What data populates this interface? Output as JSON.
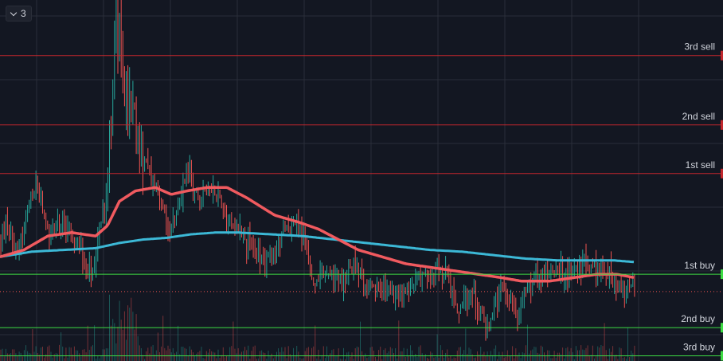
{
  "toolbar": {
    "collapse_count": "3",
    "collapse_icon": "chevron-down-icon"
  },
  "colors": {
    "background": "#131722",
    "grid": "#2a2e39",
    "candle_up": "#26a69a",
    "candle_down": "#ef5350",
    "ma_fast": "#f05a5f",
    "ma_slow": "#3cb8d6",
    "sell_line": "#c2272d",
    "buy_line": "#3ddc43",
    "label_text": "#d1d4dc"
  },
  "chart_data": {
    "type": "candlestick",
    "y_range_visible": [
      0.22,
      1.26
    ],
    "levels": [
      {
        "label": "3rd sell",
        "kind": "sell",
        "value": 1.1
      },
      {
        "label": "2nd sell",
        "kind": "sell",
        "value": 0.9
      },
      {
        "label": "1st sell",
        "kind": "sell",
        "value": 0.76
      },
      {
        "label": "1st buy",
        "kind": "buy",
        "value": 0.47
      },
      {
        "label": "2nd buy",
        "kind": "buy",
        "value": 0.316
      },
      {
        "label": "3rd buy",
        "kind": "buy",
        "value": 0.235
      }
    ],
    "last_price": 0.42,
    "price_anchors": [
      [
        0,
        0.56
      ],
      [
        8,
        0.62
      ],
      [
        22,
        0.54
      ],
      [
        45,
        0.74
      ],
      [
        60,
        0.58
      ],
      [
        75,
        0.62
      ],
      [
        95,
        0.57
      ],
      [
        115,
        0.46
      ],
      [
        135,
        0.75
      ],
      [
        145,
        1.2
      ],
      [
        155,
        1.02
      ],
      [
        165,
        0.93
      ],
      [
        180,
        0.8
      ],
      [
        200,
        0.7
      ],
      [
        215,
        0.58
      ],
      [
        235,
        0.78
      ],
      [
        250,
        0.69
      ],
      [
        270,
        0.72
      ],
      [
        285,
        0.64
      ],
      [
        300,
        0.6
      ],
      [
        320,
        0.54
      ],
      [
        340,
        0.5
      ],
      [
        355,
        0.58
      ],
      [
        370,
        0.62
      ],
      [
        385,
        0.56
      ],
      [
        392,
        0.44
      ],
      [
        410,
        0.47
      ],
      [
        430,
        0.45
      ],
      [
        445,
        0.51
      ],
      [
        460,
        0.42
      ],
      [
        480,
        0.43
      ],
      [
        500,
        0.4
      ],
      [
        520,
        0.45
      ],
      [
        540,
        0.47
      ],
      [
        560,
        0.46
      ],
      [
        575,
        0.37
      ],
      [
        595,
        0.42
      ],
      [
        610,
        0.31
      ],
      [
        630,
        0.42
      ],
      [
        650,
        0.36
      ],
      [
        665,
        0.46
      ],
      [
        690,
        0.48
      ],
      [
        710,
        0.47
      ],
      [
        735,
        0.5
      ],
      [
        760,
        0.48
      ],
      [
        775,
        0.44
      ],
      [
        795,
        0.42
      ]
    ],
    "ma_fast": [
      [
        0,
        0.52
      ],
      [
        30,
        0.54
      ],
      [
        60,
        0.58
      ],
      [
        90,
        0.59
      ],
      [
        120,
        0.58
      ],
      [
        135,
        0.61
      ],
      [
        150,
        0.68
      ],
      [
        170,
        0.71
      ],
      [
        195,
        0.72
      ],
      [
        215,
        0.7
      ],
      [
        235,
        0.71
      ],
      [
        260,
        0.72
      ],
      [
        285,
        0.72
      ],
      [
        310,
        0.69
      ],
      [
        345,
        0.64
      ],
      [
        375,
        0.62
      ],
      [
        400,
        0.6
      ],
      [
        425,
        0.57
      ],
      [
        450,
        0.54
      ],
      [
        480,
        0.52
      ],
      [
        510,
        0.5
      ],
      [
        540,
        0.49
      ],
      [
        570,
        0.48
      ],
      [
        600,
        0.47
      ],
      [
        630,
        0.46
      ],
      [
        655,
        0.45
      ],
      [
        690,
        0.45
      ],
      [
        720,
        0.46
      ],
      [
        750,
        0.47
      ],
      [
        775,
        0.47
      ],
      [
        797,
        0.46
      ]
    ],
    "ma_slow": [
      [
        0,
        0.52
      ],
      [
        40,
        0.535
      ],
      [
        80,
        0.54
      ],
      [
        120,
        0.545
      ],
      [
        150,
        0.56
      ],
      [
        180,
        0.57
      ],
      [
        210,
        0.575
      ],
      [
        240,
        0.585
      ],
      [
        270,
        0.59
      ],
      [
        300,
        0.59
      ],
      [
        340,
        0.585
      ],
      [
        380,
        0.58
      ],
      [
        420,
        0.57
      ],
      [
        460,
        0.56
      ],
      [
        500,
        0.55
      ],
      [
        540,
        0.54
      ],
      [
        580,
        0.535
      ],
      [
        620,
        0.525
      ],
      [
        660,
        0.515
      ],
      [
        700,
        0.51
      ],
      [
        740,
        0.51
      ],
      [
        770,
        0.51
      ],
      [
        797,
        0.505
      ]
    ],
    "grid": true,
    "legend": "none"
  }
}
